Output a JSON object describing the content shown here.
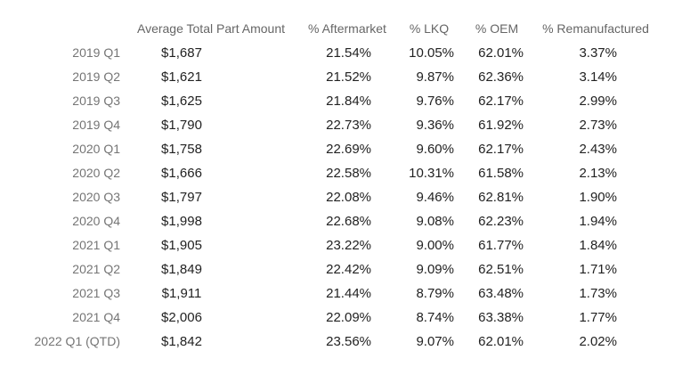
{
  "chart_data": {
    "type": "table",
    "columns": [
      "",
      "Average Total Part Amount",
      "% Aftermarket",
      "% LKQ",
      "% OEM",
      "% Remanufactured"
    ],
    "rows": [
      {
        "label": "2019 Q1",
        "amount": "$1,687",
        "aftermarket": "21.54%",
        "lkq": "10.05%",
        "oem": "62.01%",
        "reman": "3.37%"
      },
      {
        "label": "2019 Q2",
        "amount": "$1,621",
        "aftermarket": "21.52%",
        "lkq": "9.87%",
        "oem": "62.36%",
        "reman": "3.14%"
      },
      {
        "label": "2019 Q3",
        "amount": "$1,625",
        "aftermarket": "21.84%",
        "lkq": "9.76%",
        "oem": "62.17%",
        "reman": "2.99%"
      },
      {
        "label": "2019 Q4",
        "amount": "$1,790",
        "aftermarket": "22.73%",
        "lkq": "9.36%",
        "oem": "61.92%",
        "reman": "2.73%"
      },
      {
        "label": "2020 Q1",
        "amount": "$1,758",
        "aftermarket": "22.69%",
        "lkq": "9.60%",
        "oem": "62.17%",
        "reman": "2.43%"
      },
      {
        "label": "2020 Q2",
        "amount": "$1,666",
        "aftermarket": "22.58%",
        "lkq": "10.31%",
        "oem": "61.58%",
        "reman": "2.13%"
      },
      {
        "label": "2020 Q3",
        "amount": "$1,797",
        "aftermarket": "22.08%",
        "lkq": "9.46%",
        "oem": "62.81%",
        "reman": "1.90%"
      },
      {
        "label": "2020 Q4",
        "amount": "$1,998",
        "aftermarket": "22.68%",
        "lkq": "9.08%",
        "oem": "62.23%",
        "reman": "1.94%"
      },
      {
        "label": "2021 Q1",
        "amount": "$1,905",
        "aftermarket": "23.22%",
        "lkq": "9.00%",
        "oem": "61.77%",
        "reman": "1.84%"
      },
      {
        "label": "2021 Q2",
        "amount": "$1,849",
        "aftermarket": "22.42%",
        "lkq": "9.09%",
        "oem": "62.51%",
        "reman": "1.71%"
      },
      {
        "label": "2021 Q3",
        "amount": "$1,911",
        "aftermarket": "21.44%",
        "lkq": "8.79%",
        "oem": "63.48%",
        "reman": "1.73%"
      },
      {
        "label": "2021 Q4",
        "amount": "$2,006",
        "aftermarket": "22.09%",
        "lkq": "8.74%",
        "oem": "63.38%",
        "reman": "1.77%"
      },
      {
        "label": "2022 Q1 (QTD)",
        "amount": "$1,842",
        "aftermarket": "23.56%",
        "lkq": "9.07%",
        "oem": "62.01%",
        "reman": "2.02%"
      }
    ]
  }
}
